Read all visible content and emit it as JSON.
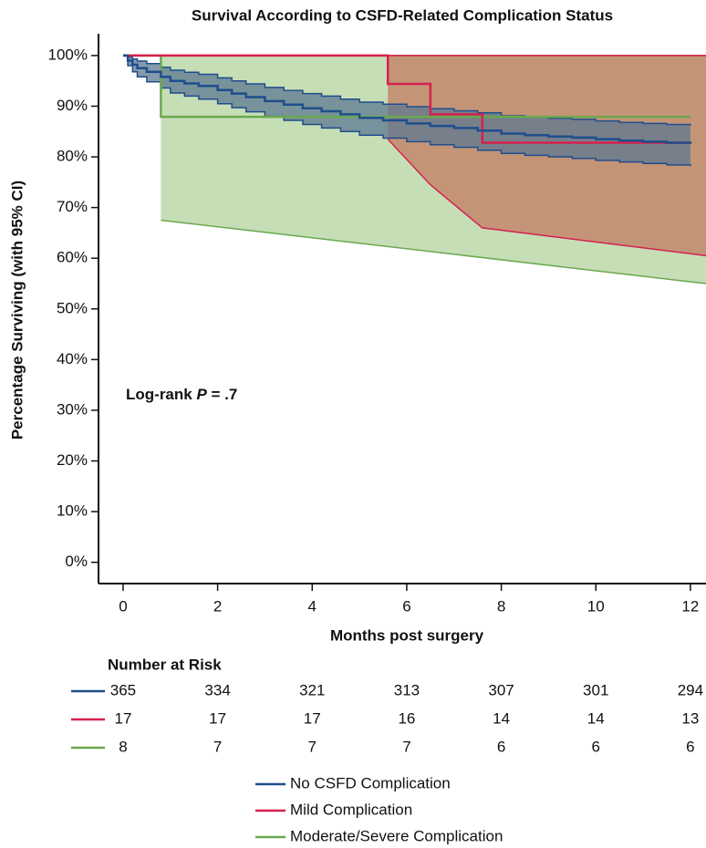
{
  "chart_data": {
    "type": "km",
    "title": "Survival According to CSFD-Related Complication Status",
    "x_label": "Months post surgery",
    "y_label": "Percentage Surviving (with 95% CI)",
    "annotation": {
      "prefix": "Log-rank ",
      "italic": "P",
      "suffix": " = .7"
    },
    "xlim": [
      -0.52,
      12.33
    ],
    "ylim": [
      -4.2,
      104.3
    ],
    "xticks": [
      0,
      2,
      4,
      6,
      8,
      10,
      12
    ],
    "yticks": [
      {
        "value": 0,
        "label": "0%"
      },
      {
        "value": 10,
        "label": "10%"
      },
      {
        "value": 20,
        "label": "20%"
      },
      {
        "value": 30,
        "label": "30%"
      },
      {
        "value": 40,
        "label": "40%"
      },
      {
        "value": 50,
        "label": "50%"
      },
      {
        "value": 60,
        "label": "60%"
      },
      {
        "value": 70,
        "label": "70%"
      },
      {
        "value": 80,
        "label": "80%"
      },
      {
        "value": 90,
        "label": "90%"
      },
      {
        "value": 100,
        "label": "100%"
      }
    ],
    "at_risk_title": "Number at Risk",
    "series": [
      {
        "name": "No CSFD Complication",
        "color": "#1f4e8c",
        "fill": "#5d7891",
        "x": [
          0,
          0.1,
          0.2,
          0.3,
          0.5,
          0.8,
          1,
          1.3,
          1.6,
          2,
          2.3,
          2.6,
          3,
          3.4,
          3.8,
          4.2,
          4.6,
          5,
          5.5,
          6,
          6.5,
          7,
          7.5,
          8,
          8.5,
          9,
          9.5,
          10,
          10.5,
          11,
          11.5,
          12
        ],
        "values": [
          100,
          99,
          98.2,
          97.5,
          96.8,
          95.8,
          95,
          94.5,
          94,
          93.2,
          92.5,
          91.8,
          91,
          90.3,
          89.6,
          89,
          88.4,
          87.7,
          87.2,
          86.6,
          86.1,
          85.7,
          85.2,
          84.6,
          84.3,
          84,
          83.8,
          83.5,
          83.2,
          83,
          82.8,
          82.6
        ],
        "ci_lower": [
          100,
          98,
          96.8,
          95.8,
          94.8,
          93.6,
          92.6,
          92,
          91.4,
          90.5,
          89.7,
          88.9,
          88,
          87.2,
          86.4,
          85.7,
          85,
          84.3,
          83.7,
          83,
          82.4,
          81.9,
          81.3,
          80.7,
          80.3,
          80,
          79.7,
          79.3,
          79,
          78.7,
          78.4,
          78.2
        ],
        "ci_upper": [
          100,
          99.7,
          99.3,
          98.9,
          98.4,
          97.7,
          97.1,
          96.7,
          96.3,
          95.6,
          95,
          94.4,
          93.7,
          93.1,
          92.5,
          92,
          91.4,
          90.8,
          90.4,
          89.9,
          89.5,
          89.1,
          88.7,
          88.1,
          87.9,
          87.6,
          87.4,
          87.1,
          86.8,
          86.6,
          86.4,
          86.2
        ],
        "at_risk": [
          365,
          334,
          321,
          313,
          307,
          301,
          294
        ]
      },
      {
        "name": "Mild Complication",
        "color": "#d6204e",
        "fill": "#c0392b",
        "x": [
          0,
          5.6,
          6.5,
          7.6,
          12
        ],
        "values": [
          100,
          94.4,
          88.4,
          82.8,
          82.8
        ],
        "ci_x": [
          5.6,
          6.5,
          7.6,
          12.33
        ],
        "ci_lower": [
          83.5,
          74.5,
          66,
          60.5
        ],
        "ci_upper": [
          100,
          100,
          100,
          100
        ],
        "at_risk": [
          17,
          17,
          17,
          16,
          14,
          14,
          13
        ]
      },
      {
        "name": "Moderate/Severe Complication",
        "color": "#6aa84f",
        "fill": "#c6deb6",
        "x": [
          0,
          0.8,
          12
        ],
        "values": [
          100,
          87.9,
          87.9
        ],
        "ci_x": [
          0.8,
          12.33
        ],
        "ci_lower": [
          67.5,
          55
        ],
        "ci_upper": [
          100,
          100
        ],
        "at_risk": [
          8,
          7,
          7,
          7,
          6,
          6,
          6
        ]
      }
    ]
  }
}
